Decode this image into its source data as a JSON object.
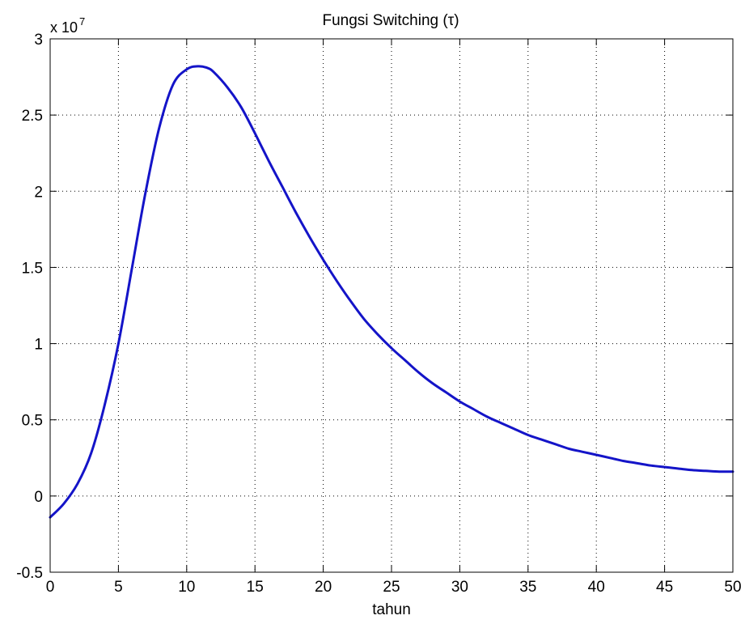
{
  "chart_data": {
    "type": "line",
    "title": "Fungsi Switching (τ)",
    "xlabel": "tahun",
    "ylabel": "",
    "y_exponent_base": "x 10",
    "y_exponent_power": "7",
    "xlim": [
      0,
      50
    ],
    "ylim": [
      -0.5,
      3
    ],
    "x_ticks": [
      0,
      5,
      10,
      15,
      20,
      25,
      30,
      35,
      40,
      45,
      50
    ],
    "y_ticks": [
      -0.5,
      0,
      0.5,
      1,
      1.5,
      2,
      2.5,
      3
    ],
    "x_tick_labels": [
      "0",
      "5",
      "10",
      "15",
      "20",
      "25",
      "30",
      "35",
      "40",
      "45",
      "50"
    ],
    "y_tick_labels": [
      "-0.5",
      "0",
      "0.5",
      "1",
      "1.5",
      "2",
      "2.5",
      "3"
    ],
    "grid": true,
    "line_color": "#1414c8",
    "series": [
      {
        "x": [
          0,
          1,
          2,
          3,
          4,
          5,
          6,
          7,
          8,
          9,
          10,
          10.8,
          11.5,
          12,
          13,
          14,
          15,
          16,
          17,
          18,
          19,
          20,
          21,
          22,
          23,
          24,
          25,
          26,
          27,
          28,
          29,
          30,
          31,
          32,
          33,
          34,
          35,
          36,
          37,
          38,
          39,
          40,
          41,
          42,
          43,
          44,
          45,
          46,
          47,
          48,
          49,
          50
        ],
        "y": [
          -0.14,
          -0.05,
          0.08,
          0.28,
          0.6,
          1.0,
          1.5,
          2.0,
          2.42,
          2.7,
          2.8,
          2.82,
          2.81,
          2.78,
          2.68,
          2.55,
          2.38,
          2.2,
          2.03,
          1.86,
          1.7,
          1.55,
          1.41,
          1.28,
          1.16,
          1.06,
          0.97,
          0.89,
          0.81,
          0.74,
          0.68,
          0.62,
          0.57,
          0.52,
          0.48,
          0.44,
          0.4,
          0.37,
          0.34,
          0.31,
          0.29,
          0.27,
          0.25,
          0.23,
          0.215,
          0.2,
          0.19,
          0.18,
          0.17,
          0.165,
          0.16,
          0.16
        ]
      }
    ]
  }
}
